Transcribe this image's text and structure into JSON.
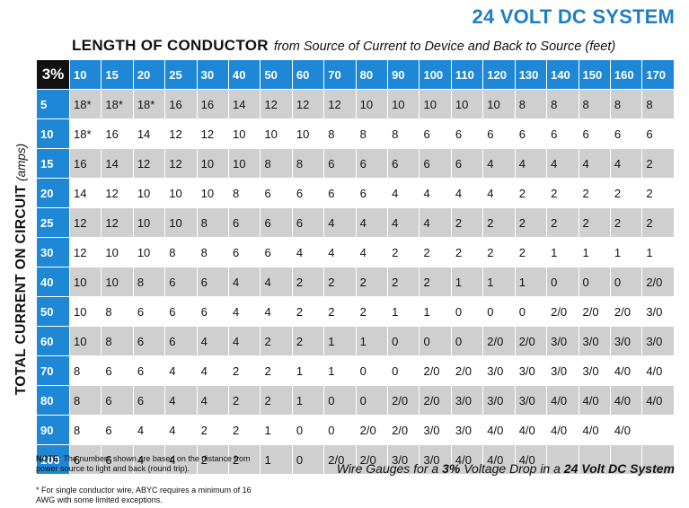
{
  "title": "24 VOLT DC SYSTEM",
  "subhead": {
    "bold": "LENGTH OF CONDUCTOR",
    "italic": "from Source of Current to Device and Back to Source  (feet)"
  },
  "ylabel": {
    "bold": "TOTAL CURRENT ON CIRCUIT",
    "italic": "(amps)"
  },
  "table": {
    "corner": "3%",
    "lengths": [
      "10",
      "15",
      "20",
      "25",
      "30",
      "40",
      "50",
      "60",
      "70",
      "80",
      "90",
      "100",
      "110",
      "120",
      "130",
      "140",
      "150",
      "160",
      "170"
    ],
    "rows": [
      {
        "amps": "5",
        "cells": [
          "18*",
          "18*",
          "18*",
          "16",
          "16",
          "14",
          "12",
          "12",
          "12",
          "10",
          "10",
          "10",
          "10",
          "10",
          "8",
          "8",
          "8",
          "8",
          "8"
        ]
      },
      {
        "amps": "10",
        "cells": [
          "18*",
          "16",
          "14",
          "12",
          "12",
          "10",
          "10",
          "10",
          "8",
          "8",
          "8",
          "6",
          "6",
          "6",
          "6",
          "6",
          "6",
          "6",
          "6"
        ]
      },
      {
        "amps": "15",
        "cells": [
          "16",
          "14",
          "12",
          "12",
          "10",
          "10",
          "8",
          "8",
          "6",
          "6",
          "6",
          "6",
          "6",
          "4",
          "4",
          "4",
          "4",
          "4",
          "2"
        ]
      },
      {
        "amps": "20",
        "cells": [
          "14",
          "12",
          "10",
          "10",
          "10",
          "8",
          "6",
          "6",
          "6",
          "6",
          "4",
          "4",
          "4",
          "4",
          "2",
          "2",
          "2",
          "2",
          "2"
        ]
      },
      {
        "amps": "25",
        "cells": [
          "12",
          "12",
          "10",
          "10",
          "8",
          "6",
          "6",
          "6",
          "4",
          "4",
          "4",
          "4",
          "2",
          "2",
          "2",
          "2",
          "2",
          "2",
          "2"
        ]
      },
      {
        "amps": "30",
        "cells": [
          "12",
          "10",
          "10",
          "8",
          "8",
          "6",
          "6",
          "4",
          "4",
          "4",
          "2",
          "2",
          "2",
          "2",
          "2",
          "1",
          "1",
          "1",
          "1"
        ]
      },
      {
        "amps": "40",
        "cells": [
          "10",
          "10",
          "8",
          "6",
          "6",
          "4",
          "4",
          "2",
          "2",
          "2",
          "2",
          "2",
          "1",
          "1",
          "1",
          "0",
          "0",
          "0",
          "2/0"
        ]
      },
      {
        "amps": "50",
        "cells": [
          "10",
          "8",
          "6",
          "6",
          "6",
          "4",
          "4",
          "2",
          "2",
          "2",
          "1",
          "1",
          "0",
          "0",
          "0",
          "2/0",
          "2/0",
          "2/0",
          "3/0"
        ]
      },
      {
        "amps": "60",
        "cells": [
          "10",
          "8",
          "6",
          "6",
          "4",
          "4",
          "2",
          "2",
          "1",
          "1",
          "0",
          "0",
          "0",
          "2/0",
          "2/0",
          "3/0",
          "3/0",
          "3/0",
          "3/0"
        ]
      },
      {
        "amps": "70",
        "cells": [
          "8",
          "6",
          "6",
          "4",
          "4",
          "2",
          "2",
          "1",
          "1",
          "0",
          "0",
          "2/0",
          "2/0",
          "3/0",
          "3/0",
          "3/0",
          "3/0",
          "4/0",
          "4/0"
        ]
      },
      {
        "amps": "80",
        "cells": [
          "8",
          "6",
          "6",
          "4",
          "4",
          "2",
          "2",
          "1",
          "0",
          "0",
          "2/0",
          "2/0",
          "3/0",
          "3/0",
          "3/0",
          "4/0",
          "4/0",
          "4/0",
          "4/0"
        ]
      },
      {
        "amps": "90",
        "cells": [
          "8",
          "6",
          "4",
          "4",
          "2",
          "2",
          "1",
          "0",
          "0",
          "2/0",
          "2/0",
          "3/0",
          "3/0",
          "4/0",
          "4/0",
          "4/0",
          "4/0",
          "4/0",
          ""
        ]
      },
      {
        "amps": "100",
        "cells": [
          "6",
          "6",
          "4",
          "4",
          "2",
          "2",
          "1",
          "0",
          "2/0",
          "2/0",
          "3/0",
          "3/0",
          "4/0",
          "4/0",
          "4/0",
          "",
          "",
          "",
          ""
        ]
      }
    ]
  },
  "note": {
    "label": "NOTE:",
    "text": "The numbers shown are based on the distance from power source to light and back (round trip).",
    "footnote": "* For single conductor wire, ABYC requires a minimum of 16 AWG with some limited exceptions."
  },
  "caption": {
    "pre": "Wire Gauges for a ",
    "pct": "3%",
    "mid": " Voltage Drop in a ",
    "system": "24 Volt DC System"
  },
  "colors": {
    "header_blue": "#1f88d6",
    "title_blue": "#1f7fc4",
    "corner_black": "#111111",
    "stripe_gray": "#cfcfcf"
  }
}
